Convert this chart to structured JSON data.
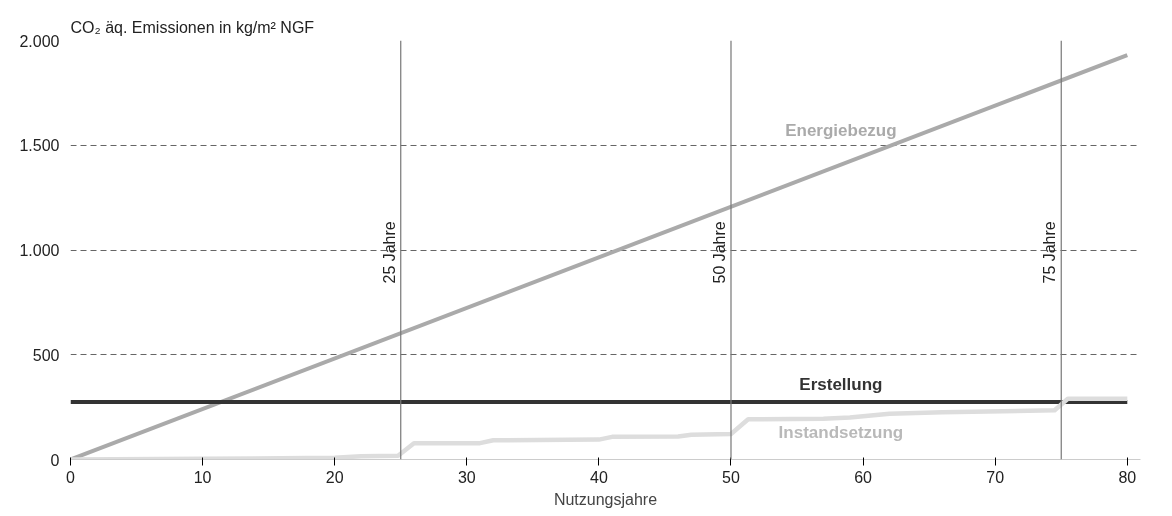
{
  "chart_data": {
    "type": "line",
    "ylabel": "CO₂ äq. Emissionen in kg/m² NGF",
    "xlabel": "Nutzungsjahre",
    "xlim": [
      0,
      81
    ],
    "xticks": [
      0,
      10,
      20,
      30,
      40,
      50,
      60,
      70,
      80
    ],
    "ylim": [
      0,
      2000
    ],
    "yticks": [
      0,
      500,
      {
        "value": 1000,
        "label": "1.000"
      },
      {
        "value": 1500,
        "label": "1.500"
      },
      {
        "value": 2000,
        "label": "2.000"
      }
    ],
    "grid": "y",
    "line_style": "solid",
    "marker": "none",
    "series": [
      {
        "name": "Energiebezug",
        "color": "#aaaaaa",
        "x": [
          0,
          80
        ],
        "values": [
          0,
          1930
        ]
      },
      {
        "name": "Erstellung",
        "color": "#333333",
        "x": [
          0,
          80
        ],
        "values": [
          275,
          275
        ]
      },
      {
        "name": "Instandsetzung",
        "color": "#dddddd",
        "x": [
          0,
          10,
          20,
          22,
          24.8,
          26,
          31,
          32,
          40,
          41,
          46,
          47,
          50,
          51.3,
          57,
          59,
          62,
          66,
          74.5,
          75.5,
          80
        ],
        "values": [
          0,
          3,
          8,
          15,
          18,
          78,
          78,
          92,
          95,
          108,
          110,
          118,
          122,
          192,
          194,
          200,
          218,
          225,
          235,
          290,
          290
        ]
      }
    ],
    "ref_lines": [
      {
        "axis": "x",
        "value": 25,
        "label": "25 Jahre",
        "color": "#777777"
      },
      {
        "axis": "x",
        "value": 50,
        "label": "50 Jahre",
        "color": "#777777"
      },
      {
        "axis": "x",
        "value": 75,
        "label": "75 Jahre",
        "color": "#777777"
      }
    ]
  }
}
